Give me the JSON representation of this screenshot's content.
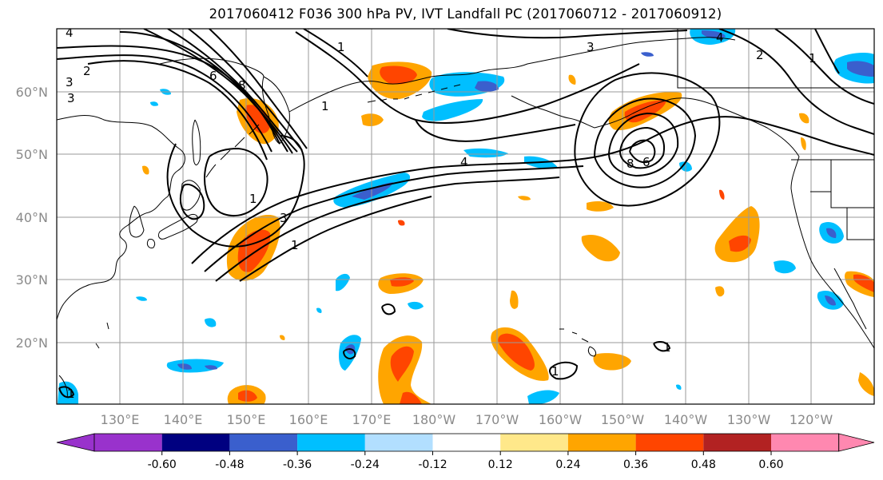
{
  "title": "2017060412 F036 300 hPa PV, IVT Landfall PC (2017060712 - 2017060912)",
  "map": {
    "lat_labels": [
      "60°N",
      "50°N",
      "40°N",
      "30°N",
      "20°N"
    ],
    "lon_labels": [
      "130°E",
      "140°E",
      "150°E",
      "160°E",
      "170°E",
      "180°W",
      "170°W",
      "160°W",
      "150°W",
      "140°W",
      "130°W",
      "120°W"
    ],
    "contour_labels": [
      "4",
      "2",
      "3",
      "3",
      "6",
      "8",
      "1",
      "1",
      "4",
      "3",
      "2",
      "8",
      "6",
      "1",
      "3",
      "1",
      "1",
      "4",
      "1",
      "1",
      "1"
    ]
  },
  "colorbar": {
    "ticks": [
      "-0.60",
      "-0.48",
      "-0.36",
      "-0.24",
      "-0.12",
      "0.12",
      "0.24",
      "0.36",
      "0.48",
      "0.60"
    ],
    "colors": [
      "#9932cc",
      "#000080",
      "#3a5fcd",
      "#00bfff",
      "#b2dfff",
      "#ffffff",
      "#ffe88a",
      "#ffa500",
      "#ff4500",
      "#b22222",
      "#ff88b0"
    ]
  }
}
